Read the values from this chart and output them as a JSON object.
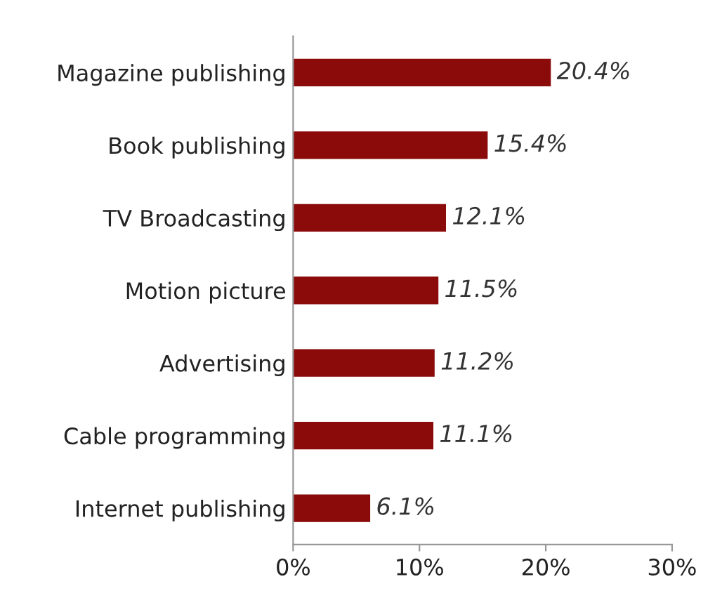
{
  "chart_data": {
    "type": "bar",
    "orientation": "horizontal",
    "categories": [
      "Magazine publishing",
      "Book publishing",
      "TV Broadcasting",
      "Motion picture",
      "Advertising",
      "Cable programming",
      "Internet publishing"
    ],
    "values": [
      20.4,
      15.4,
      12.1,
      11.5,
      11.2,
      11.1,
      6.1
    ],
    "value_labels": [
      "20.4%",
      "15.4%",
      "12.1%",
      "11.5%",
      "11.2%",
      "11.1%",
      "6.1%"
    ],
    "color": "#8b0a0a",
    "xlim": [
      0,
      30
    ],
    "xticks": [
      {
        "value": 0,
        "label": "0%"
      },
      {
        "value": 10,
        "label": "10%"
      },
      {
        "value": 20,
        "label": "20%"
      },
      {
        "value": 30,
        "label": "30%"
      }
    ],
    "grid": false
  }
}
